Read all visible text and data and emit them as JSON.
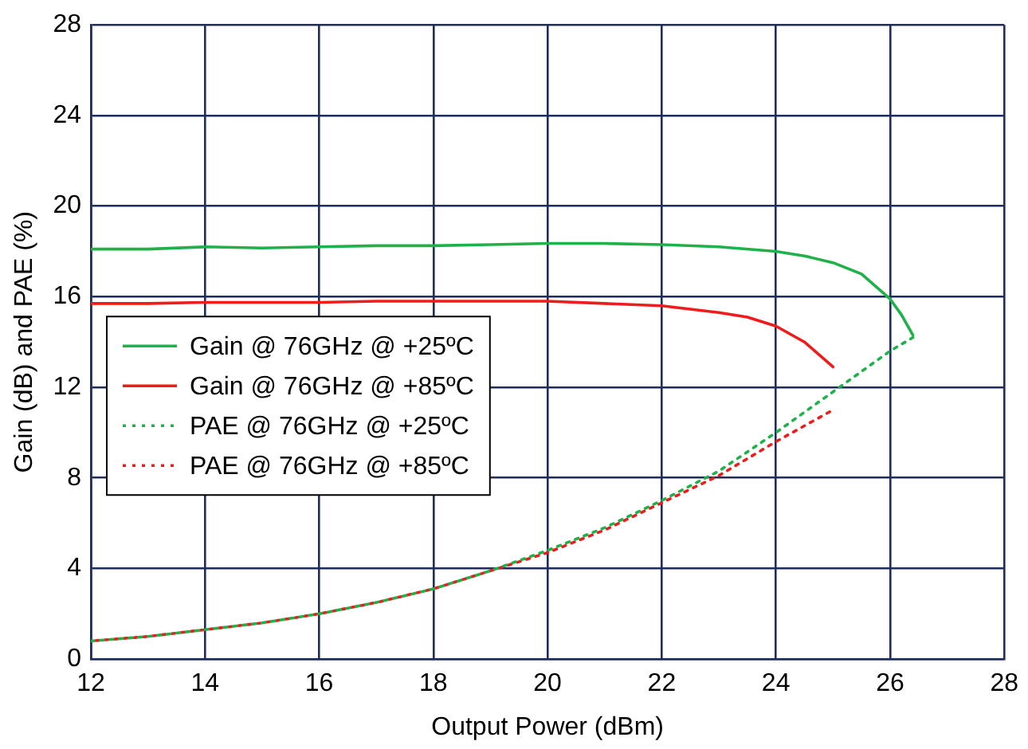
{
  "chart_data": {
    "type": "line",
    "xlabel": "Output Power (dBm)",
    "ylabel": "Gain (dB) and PAE (%)",
    "xlim": [
      12,
      28
    ],
    "xticks": [
      12,
      14,
      16,
      18,
      20,
      22,
      24,
      26,
      28
    ],
    "ylim": [
      0,
      28
    ],
    "yticks": [
      0,
      4,
      8,
      12,
      16,
      20,
      24,
      28
    ],
    "grid": true,
    "legend": "left",
    "marker": "none",
    "series": [
      {
        "name": "Gain @ 76GHz @ +25ºC",
        "color": "#1fb14a",
        "line_style": "solid",
        "x": [
          12,
          13,
          14,
          15,
          16,
          17,
          18,
          19,
          20,
          20.5,
          21,
          22,
          23,
          24,
          24.5,
          25,
          25.5,
          26,
          26.2,
          26.4
        ],
        "values": [
          18.1,
          18.1,
          18.2,
          18.15,
          18.2,
          18.25,
          18.25,
          18.3,
          18.35,
          18.35,
          18.35,
          18.3,
          18.2,
          18.0,
          17.8,
          17.5,
          17.0,
          15.9,
          15.2,
          14.3
        ]
      },
      {
        "name": "Gain @ 76GHz @ +85ºC",
        "color": "#ee1c1c",
        "line_style": "solid",
        "x": [
          12,
          13,
          14,
          15,
          16,
          17,
          18,
          19,
          20,
          21,
          22,
          23,
          23.5,
          24,
          24.5,
          25
        ],
        "values": [
          15.7,
          15.7,
          15.75,
          15.75,
          15.75,
          15.8,
          15.8,
          15.8,
          15.8,
          15.7,
          15.6,
          15.3,
          15.1,
          14.7,
          14.0,
          12.9
        ]
      },
      {
        "name": "PAE @ 76GHz @ +25ºC",
        "color": "#1fb14a",
        "line_style": "dotted",
        "x": [
          12,
          13,
          14,
          15,
          16,
          17,
          18,
          19,
          20,
          21,
          22,
          23,
          24,
          25,
          26,
          26.4
        ],
        "values": [
          0.8,
          1.0,
          1.3,
          1.6,
          2.0,
          2.5,
          3.1,
          3.9,
          4.8,
          5.8,
          7.0,
          8.3,
          10.0,
          11.8,
          13.6,
          14.2
        ]
      },
      {
        "name": "PAE @ 76GHz @ +85ºC",
        "color": "#ee1c1c",
        "line_style": "dotted",
        "x": [
          12,
          13,
          14,
          15,
          16,
          17,
          18,
          19,
          20,
          21,
          22,
          23,
          24,
          25
        ],
        "values": [
          0.8,
          1.0,
          1.3,
          1.6,
          2.0,
          2.5,
          3.1,
          3.9,
          4.7,
          5.7,
          6.9,
          8.1,
          9.6,
          11.0
        ]
      }
    ]
  }
}
